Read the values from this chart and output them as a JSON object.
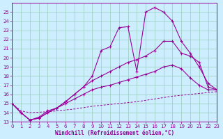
{
  "bg_color": "#cceeff",
  "line_color": "#990099",
  "grid_color": "#99ccbb",
  "xlabel": "Windchill (Refroidissement éolien,°C)",
  "xlim": [
    0,
    23
  ],
  "ylim": [
    13,
    26
  ],
  "xticks": [
    0,
    1,
    2,
    3,
    4,
    5,
    6,
    7,
    8,
    9,
    10,
    11,
    12,
    13,
    14,
    15,
    16,
    17,
    18,
    19,
    20,
    21,
    22,
    23
  ],
  "yticks": [
    13,
    14,
    15,
    16,
    17,
    18,
    19,
    20,
    21,
    22,
    23,
    24,
    25
  ],
  "curve1_x": [
    0,
    1,
    2,
    3,
    4,
    5,
    6,
    7,
    8,
    9,
    10,
    11,
    12,
    13,
    14,
    15,
    16,
    17,
    18,
    19,
    20,
    21,
    22,
    23
  ],
  "curve1_y": [
    15.0,
    14.0,
    13.2,
    13.4,
    14.0,
    14.5,
    15.2,
    16.0,
    16.8,
    18.0,
    20.8,
    21.2,
    23.3,
    23.4,
    18.5,
    25.0,
    25.5,
    25.0,
    24.0,
    21.8,
    20.5,
    19.0,
    17.2,
    16.5
  ],
  "curve2_x": [
    0,
    1,
    2,
    3,
    4,
    5,
    6,
    7,
    8,
    9,
    10,
    11,
    12,
    13,
    14,
    15,
    16,
    17,
    18,
    19,
    20,
    21,
    22,
    23
  ],
  "curve2_y": [
    15.0,
    14.0,
    13.2,
    13.4,
    14.0,
    14.5,
    15.2,
    16.0,
    16.8,
    17.5,
    18.0,
    18.5,
    19.0,
    19.5,
    19.8,
    20.2,
    20.8,
    21.8,
    21.8,
    20.5,
    20.2,
    19.5,
    16.8,
    16.5
  ],
  "curve3_x": [
    0,
    1,
    2,
    3,
    4,
    5,
    6,
    7,
    8,
    9,
    10,
    11,
    12,
    13,
    14,
    15,
    16,
    17,
    18,
    19,
    20,
    21,
    22,
    23
  ],
  "curve3_y": [
    15.0,
    14.0,
    13.2,
    13.5,
    14.2,
    14.5,
    15.0,
    15.5,
    16.0,
    16.5,
    16.8,
    17.0,
    17.3,
    17.6,
    17.9,
    18.2,
    18.5,
    19.0,
    19.2,
    18.8,
    17.8,
    17.0,
    16.5,
    16.5
  ],
  "curve4_x": [
    0,
    1,
    2,
    3,
    4,
    5,
    6,
    7,
    8,
    9,
    10,
    11,
    12,
    13,
    14,
    15,
    16,
    17,
    18,
    19,
    20,
    21,
    22,
    23
  ],
  "curve4_y": [
    15.0,
    14.2,
    14.0,
    14.05,
    14.1,
    14.2,
    14.3,
    14.4,
    14.55,
    14.7,
    14.8,
    14.9,
    15.0,
    15.1,
    15.2,
    15.35,
    15.5,
    15.65,
    15.8,
    15.9,
    16.0,
    16.1,
    16.2,
    16.3
  ]
}
